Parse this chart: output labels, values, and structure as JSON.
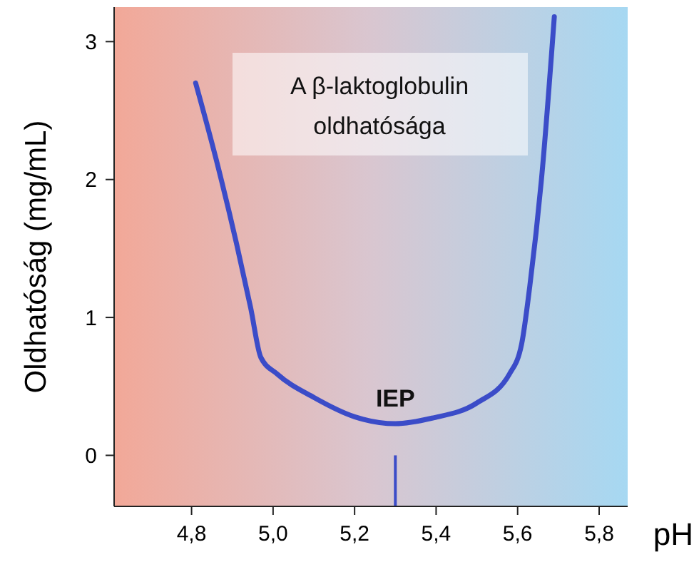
{
  "chart_data": {
    "type": "line",
    "title": "A β-laktoglobulin oldhatósága",
    "xlabel": "pH",
    "ylabel": "Oldhatóság (mg/mL)",
    "x": [
      4.81,
      4.86,
      4.91,
      4.945,
      4.97,
      5.01,
      5.1,
      5.2,
      5.3,
      5.39,
      5.5,
      5.58,
      5.61,
      5.63,
      5.66,
      5.69
    ],
    "series": [
      {
        "color": "#3b4cc8",
        "values": [
          2.7,
          2.15,
          1.54,
          1.07,
          0.71,
          0.59,
          0.42,
          0.28,
          0.23,
          0.27,
          0.38,
          0.59,
          0.81,
          1.23,
          2.05,
          3.18
        ]
      }
    ],
    "xlim": [
      4.61,
      5.87
    ],
    "xticks": [
      {
        "value": 4.8,
        "label": "4,8"
      },
      {
        "value": 5.0,
        "label": "5,0"
      },
      {
        "value": 5.2,
        "label": "5,2"
      },
      {
        "value": 5.4,
        "label": "5,4"
      },
      {
        "value": 5.6,
        "label": "5,6"
      },
      {
        "value": 5.8,
        "label": "5,8"
      }
    ],
    "ylim": [
      -0.37,
      3.25
    ],
    "yticks": [
      0,
      1,
      2,
      3
    ],
    "ref_lines": [
      {
        "axis": "x",
        "value": 5.3,
        "color": "#3b4cc8"
      }
    ],
    "annotations": [
      {
        "text": "IEP",
        "x": 5.3,
        "y": 0.23
      }
    ],
    "line_style": "solid",
    "marker": "none"
  }
}
